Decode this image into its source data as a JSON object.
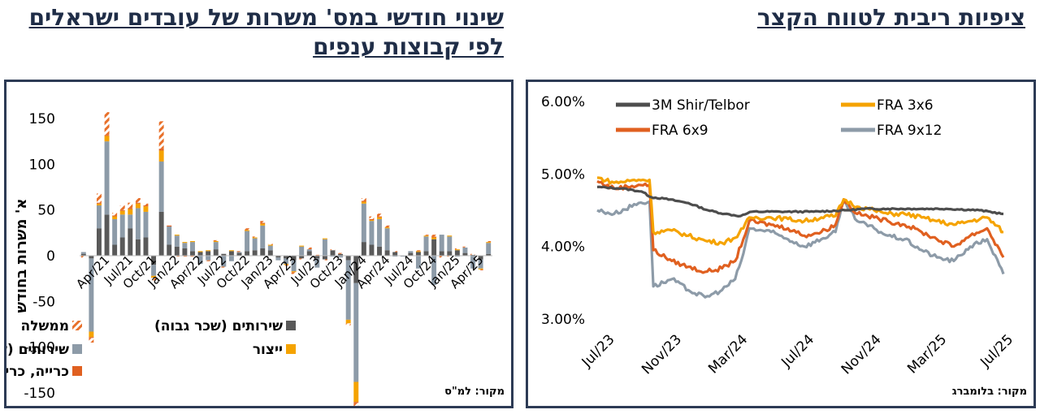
{
  "headings": {
    "left": "שינוי חודשי במס' משרות  של עובדים ישראלים לפי קבוצות ענפים",
    "right": "ציפיות ריבית לטווח הקצר"
  },
  "chart_data": [
    {
      "type": "bar",
      "stacked": true,
      "ylabel": "א' משרות בחודש",
      "ylim": [
        -150,
        150
      ],
      "yticks": [
        150,
        100,
        50,
        0,
        -50,
        -100,
        -150
      ],
      "categories": [
        "Jan/21",
        "Feb/21",
        "Mar/21",
        "Apr/21",
        "May/21",
        "Jun/21",
        "Jul/21",
        "Aug/21",
        "Sep/21",
        "Oct/21",
        "Nov/21",
        "Dec/21",
        "Jan/22",
        "Feb/22",
        "Mar/22",
        "Apr/22",
        "May/22",
        "Jun/22",
        "Jul/22",
        "Aug/22",
        "Sep/22",
        "Oct/22",
        "Nov/22",
        "Dec/22",
        "Jan/23",
        "Feb/23",
        "Mar/23",
        "Apr/23",
        "May/23",
        "Jun/23",
        "Jul/23",
        "Aug/23",
        "Sep/23",
        "Oct/23",
        "Nov/23",
        "Dec/23",
        "Jan/24",
        "Feb/24",
        "Mar/24",
        "Apr/24",
        "May/24",
        "Jun/24",
        "Jul/24",
        "Aug/24",
        "Sep/24",
        "Oct/24",
        "Nov/24",
        "Dec/24",
        "Jan/25",
        "Feb/25",
        "Mar/25",
        "Apr/25",
        "May/25"
      ],
      "xtick_labels": [
        "Apr/21",
        "Jul/21",
        "Oct/21",
        "Jan/22",
        "Apr/22",
        "Jul/22",
        "Oct/22",
        "Jan/23",
        "Apr/23",
        "Jul/23",
        "Oct/23",
        "Jan/24",
        "Apr/24",
        "Jul/24",
        "Oct/24",
        "Jan/25",
        "Apr/25"
      ],
      "series": [
        {
          "name": "ממשלה",
          "color": "#e8702a",
          "hatched": true,
          "values": [
            -2,
            -5,
            10,
            25,
            3,
            5,
            6,
            5,
            2,
            -3,
            30,
            0,
            -1,
            -1,
            -1,
            0,
            -1,
            1,
            -1,
            0,
            1,
            2,
            1,
            2,
            1,
            0,
            -1,
            -2,
            -1,
            2,
            1,
            -1,
            1,
            1,
            -2,
            -5,
            3,
            3,
            3,
            2,
            1,
            0,
            0,
            1,
            1,
            2,
            -2,
            -1,
            1,
            1,
            1,
            -1,
            1
          ]
        },
        {
          "name": "שירותים (שכר גבוה)",
          "color": "#595959",
          "values": [
            2,
            -3,
            30,
            45,
            12,
            20,
            30,
            18,
            20,
            -10,
            48,
            12,
            10,
            8,
            5,
            4,
            5,
            7,
            2,
            5,
            3,
            5,
            6,
            8,
            6,
            -2,
            -3,
            -5,
            -3,
            5,
            -3,
            -4,
            6,
            2,
            -5,
            -30,
            15,
            12,
            10,
            6,
            4,
            0,
            3,
            4,
            5,
            18,
            5,
            5,
            6,
            3,
            1,
            -4,
            2
          ]
        },
        {
          "name": "שירותים (שכר נמוך)",
          "color": "#8d9ba8",
          "values": [
            2,
            -80,
            25,
            80,
            28,
            25,
            15,
            34,
            28,
            -12,
            55,
            20,
            12,
            6,
            10,
            -9,
            -5,
            8,
            -12,
            -6,
            1,
            22,
            13,
            25,
            5,
            -3,
            -6,
            -12,
            10,
            2,
            -10,
            18,
            -1,
            -2,
            -65,
            -108,
            42,
            26,
            30,
            24,
            -1,
            -1,
            2,
            -14,
            16,
            -32,
            18,
            16,
            -1,
            6,
            -14,
            -10,
            12
          ]
        },
        {
          "name": "ייצור",
          "color": "#f5a300",
          "values": [
            0,
            -6,
            2,
            6,
            3,
            4,
            6,
            5,
            6,
            -2,
            12,
            0,
            1,
            1,
            1,
            1,
            1,
            1,
            0,
            1,
            0,
            1,
            1,
            2,
            1,
            0,
            -1,
            -1,
            1,
            0,
            0,
            1,
            0,
            0,
            -4,
            -22,
            2,
            1,
            2,
            1,
            0,
            0,
            0,
            1,
            1,
            2,
            0,
            1,
            1,
            0,
            0,
            -1,
            1
          ]
        },
        {
          "name": "כרייה, כריתת עצים ובניה",
          "color": "#e06020",
          "values": [
            0,
            -1,
            1,
            1,
            1,
            1,
            1,
            1,
            1,
            0,
            2,
            1,
            0,
            0,
            0,
            0,
            0,
            0,
            0,
            0,
            0,
            0,
            0,
            1,
            0,
            0,
            0,
            0,
            0,
            0,
            0,
            0,
            0,
            0,
            0,
            -1,
            1,
            1,
            1,
            0,
            0,
            0,
            0,
            0,
            0,
            1,
            0,
            0,
            0,
            0,
            0,
            0,
            0
          ]
        }
      ],
      "source": "מקור: למ\"ס"
    },
    {
      "type": "line",
      "ylim": [
        3.0,
        6.0
      ],
      "yticks": [
        "6.00%",
        "5.00%",
        "4.00%",
        "3.00%"
      ],
      "xlim": [
        "2023-07-01",
        "2025-07-15"
      ],
      "xtick_labels": [
        "Jul/23",
        "Nov/23",
        "Mar/24",
        "Jul/24",
        "Nov/24",
        "Mar/25",
        "Jul/25"
      ],
      "series": [
        {
          "name": "3M Shir/Telbor",
          "color": "#4d4d4d",
          "points": [
            [
              "2023-07-01",
              4.82
            ],
            [
              "2023-08-15",
              4.8
            ],
            [
              "2023-09-20",
              4.76
            ],
            [
              "2023-10-08",
              4.68
            ],
            [
              "2023-11-01",
              4.66
            ],
            [
              "2023-12-15",
              4.6
            ],
            [
              "2024-01-20",
              4.5
            ],
            [
              "2024-02-20",
              4.45
            ],
            [
              "2024-03-20",
              4.42
            ],
            [
              "2024-04-10",
              4.48
            ],
            [
              "2024-06-01",
              4.48
            ],
            [
              "2024-08-01",
              4.48
            ],
            [
              "2024-10-01",
              4.5
            ],
            [
              "2024-11-01",
              4.52
            ],
            [
              "2024-12-15",
              4.52
            ],
            [
              "2025-02-01",
              4.52
            ],
            [
              "2025-04-01",
              4.52
            ],
            [
              "2025-06-01",
              4.5
            ],
            [
              "2025-07-15",
              4.45
            ]
          ]
        },
        {
          "name": "FRA 3x6",
          "color": "#f5a300",
          "points": [
            [
              "2023-07-01",
              4.95
            ],
            [
              "2023-08-01",
              4.88
            ],
            [
              "2023-09-15",
              4.92
            ],
            [
              "2023-10-05",
              4.92
            ],
            [
              "2023-10-12",
              4.2
            ],
            [
              "2023-11-15",
              4.22
            ],
            [
              "2023-12-15",
              4.15
            ],
            [
              "2024-01-15",
              4.08
            ],
            [
              "2024-02-15",
              4.05
            ],
            [
              "2024-03-10",
              4.12
            ],
            [
              "2024-03-25",
              4.25
            ],
            [
              "2024-04-05",
              4.4
            ],
            [
              "2024-05-15",
              4.4
            ],
            [
              "2024-06-15",
              4.38
            ],
            [
              "2024-07-15",
              4.35
            ],
            [
              "2024-08-15",
              4.4
            ],
            [
              "2024-09-10",
              4.42
            ],
            [
              "2024-09-25",
              4.65
            ],
            [
              "2024-10-20",
              4.55
            ],
            [
              "2024-11-20",
              4.5
            ],
            [
              "2024-12-15",
              4.45
            ],
            [
              "2025-01-15",
              4.45
            ],
            [
              "2025-02-15",
              4.4
            ],
            [
              "2025-03-15",
              4.35
            ],
            [
              "2025-04-15",
              4.3
            ],
            [
              "2025-05-15",
              4.35
            ],
            [
              "2025-06-15",
              4.4
            ],
            [
              "2025-07-15",
              4.2
            ]
          ]
        },
        {
          "name": "FRA 6x9",
          "color": "#e06020",
          "points": [
            [
              "2023-07-01",
              4.9
            ],
            [
              "2023-08-01",
              4.8
            ],
            [
              "2023-09-15",
              4.85
            ],
            [
              "2023-10-05",
              4.85
            ],
            [
              "2023-10-12",
              3.95
            ],
            [
              "2023-11-15",
              3.8
            ],
            [
              "2023-12-15",
              3.72
            ],
            [
              "2024-01-15",
              3.65
            ],
            [
              "2024-02-15",
              3.7
            ],
            [
              "2024-03-10",
              3.8
            ],
            [
              "2024-03-25",
              4.1
            ],
            [
              "2024-04-05",
              4.35
            ],
            [
              "2024-05-15",
              4.3
            ],
            [
              "2024-06-15",
              4.25
            ],
            [
              "2024-07-15",
              4.15
            ],
            [
              "2024-08-15",
              4.2
            ],
            [
              "2024-09-10",
              4.3
            ],
            [
              "2024-09-25",
              4.65
            ],
            [
              "2024-10-20",
              4.45
            ],
            [
              "2024-11-20",
              4.4
            ],
            [
              "2024-12-15",
              4.35
            ],
            [
              "2025-01-15",
              4.3
            ],
            [
              "2025-02-15",
              4.2
            ],
            [
              "2025-03-15",
              4.1
            ],
            [
              "2025-04-15",
              4.0
            ],
            [
              "2025-05-15",
              4.15
            ],
            [
              "2025-06-15",
              4.25
            ],
            [
              "2025-07-15",
              3.85
            ]
          ]
        },
        {
          "name": "FRA 9x12",
          "color": "#8d9ba8",
          "points": [
            [
              "2023-07-01",
              4.5
            ],
            [
              "2023-08-01",
              4.45
            ],
            [
              "2023-09-15",
              4.6
            ],
            [
              "2023-10-05",
              4.62
            ],
            [
              "2023-10-12",
              3.45
            ],
            [
              "2023-11-15",
              3.55
            ],
            [
              "2023-12-15",
              3.4
            ],
            [
              "2024-01-15",
              3.3
            ],
            [
              "2024-02-15",
              3.4
            ],
            [
              "2024-03-10",
              3.55
            ],
            [
              "2024-03-25",
              3.9
            ],
            [
              "2024-04-05",
              4.25
            ],
            [
              "2024-05-15",
              4.2
            ],
            [
              "2024-06-15",
              4.1
            ],
            [
              "2024-07-15",
              4.0
            ],
            [
              "2024-08-15",
              4.1
            ],
            [
              "2024-09-10",
              4.2
            ],
            [
              "2024-09-25",
              4.62
            ],
            [
              "2024-10-20",
              4.35
            ],
            [
              "2024-11-20",
              4.25
            ],
            [
              "2024-12-15",
              4.15
            ],
            [
              "2025-01-15",
              4.1
            ],
            [
              "2025-02-15",
              3.95
            ],
            [
              "2025-03-15",
              3.85
            ],
            [
              "2025-04-15",
              3.8
            ],
            [
              "2025-05-15",
              4.0
            ],
            [
              "2025-06-15",
              4.1
            ],
            [
              "2025-07-15",
              3.62
            ]
          ]
        }
      ],
      "source": "מקור: בלומברג"
    }
  ]
}
